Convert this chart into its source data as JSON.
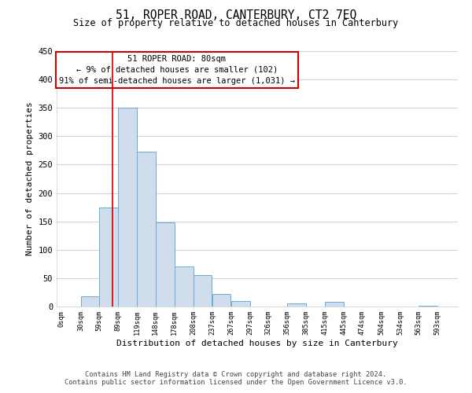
{
  "title": "51, ROPER ROAD, CANTERBURY, CT2 7EQ",
  "subtitle": "Size of property relative to detached houses in Canterbury",
  "xlabel": "Distribution of detached houses by size in Canterbury",
  "ylabel": "Number of detached properties",
  "bar_left_edges": [
    0,
    30,
    59,
    89,
    119,
    148,
    178,
    208,
    237,
    267,
    297,
    326,
    356,
    385,
    415,
    445,
    474,
    504,
    534,
    563
  ],
  "bar_heights": [
    0,
    18,
    175,
    350,
    273,
    148,
    70,
    55,
    22,
    10,
    0,
    0,
    6,
    0,
    8,
    0,
    0,
    0,
    0,
    2
  ],
  "bar_widths": [
    30,
    29,
    30,
    30,
    29,
    30,
    30,
    29,
    30,
    30,
    29,
    30,
    29,
    30,
    30,
    29,
    30,
    30,
    29,
    30
  ],
  "bar_color": "#cfdded",
  "bar_edgecolor": "#6aaad4",
  "tick_labels": [
    "0sqm",
    "30sqm",
    "59sqm",
    "89sqm",
    "119sqm",
    "148sqm",
    "178sqm",
    "208sqm",
    "237sqm",
    "267sqm",
    "297sqm",
    "326sqm",
    "356sqm",
    "385sqm",
    "415sqm",
    "445sqm",
    "474sqm",
    "504sqm",
    "534sqm",
    "563sqm",
    "593sqm"
  ],
  "vline_x": 80,
  "vline_color": "#cc0000",
  "ylim": [
    0,
    450
  ],
  "yticks": [
    0,
    50,
    100,
    150,
    200,
    250,
    300,
    350,
    400,
    450
  ],
  "annotation_title": "51 ROPER ROAD: 80sqm",
  "annotation_line1": "← 9% of detached houses are smaller (102)",
  "annotation_line2": "91% of semi-detached houses are larger (1,031) →",
  "footer_line1": "Contains HM Land Registry data © Crown copyright and database right 2024.",
  "footer_line2": "Contains public sector information licensed under the Open Government Licence v3.0.",
  "background_color": "#ffffff",
  "grid_color": "#c8d4e0"
}
